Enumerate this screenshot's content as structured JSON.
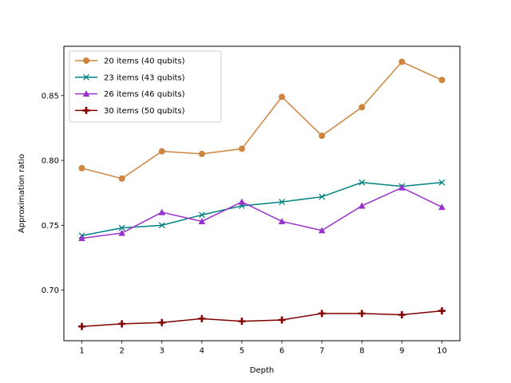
{
  "chart_data": {
    "type": "line",
    "xlabel": "Depth",
    "ylabel": "Approximation ratio",
    "x": [
      1,
      2,
      3,
      4,
      5,
      6,
      7,
      8,
      9,
      10
    ],
    "xlim": [
      0.55,
      10.45
    ],
    "ylim": [
      0.661,
      0.888
    ],
    "xticks": [
      "1",
      "2",
      "3",
      "4",
      "5",
      "6",
      "7",
      "8",
      "9",
      "10"
    ],
    "yticks": [
      "0.70",
      "0.75",
      "0.80",
      "0.85"
    ],
    "grid": false,
    "legend_position": "top-left",
    "series": [
      {
        "name": "20 items (40 qubits)",
        "color": "#cd853f",
        "marker": "circle",
        "values": [
          0.794,
          0.786,
          0.807,
          0.805,
          0.809,
          0.849,
          0.819,
          0.841,
          0.876,
          0.862
        ]
      },
      {
        "name": "23 items (43 qubits)",
        "color": "#008080",
        "marker": "x",
        "values": [
          0.742,
          0.748,
          0.75,
          0.758,
          0.765,
          0.768,
          0.772,
          0.783,
          0.78,
          0.783
        ]
      },
      {
        "name": "26 items (46 qubits)",
        "color": "#9932cc",
        "marker": "triangle",
        "values": [
          0.74,
          0.744,
          0.76,
          0.753,
          0.768,
          0.753,
          0.746,
          0.765,
          0.779,
          0.764
        ]
      },
      {
        "name": "30 items (50 qubits)",
        "color": "#800000",
        "marker": "plus",
        "values": [
          0.672,
          0.674,
          0.675,
          0.678,
          0.676,
          0.677,
          0.682,
          0.682,
          0.681,
          0.684
        ]
      }
    ]
  }
}
